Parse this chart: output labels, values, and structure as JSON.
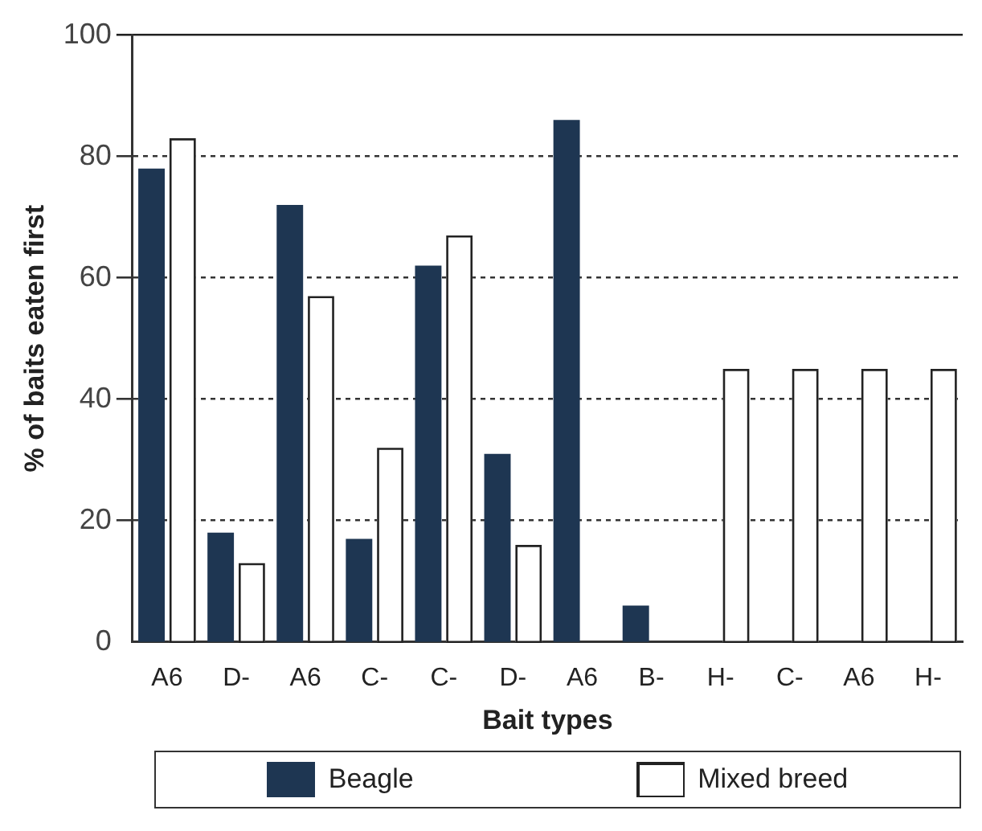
{
  "chart_data": {
    "type": "bar",
    "xlabel": "Bait types",
    "ylabel": "% of baits eaten first",
    "categories": [
      "A6",
      "D-",
      "A6",
      "C-",
      "C-",
      "D-",
      "A6",
      "B-",
      "H-",
      "C-",
      "A6",
      "H-"
    ],
    "series": [
      {
        "name": "Beagle",
        "color": "#1e3652",
        "values": [
          78,
          18,
          72,
          17,
          62,
          31,
          86,
          6,
          null,
          null,
          null,
          null
        ]
      },
      {
        "name": "Mixed breed",
        "color": "#ffffff",
        "values": [
          83,
          13,
          57,
          32,
          67,
          16,
          null,
          null,
          45,
          45,
          45,
          45
        ]
      }
    ],
    "ylim": [
      0,
      100
    ],
    "yticks": [
      0,
      20,
      40,
      60,
      80,
      100
    ],
    "grid": "y",
    "legend": "bottom"
  }
}
